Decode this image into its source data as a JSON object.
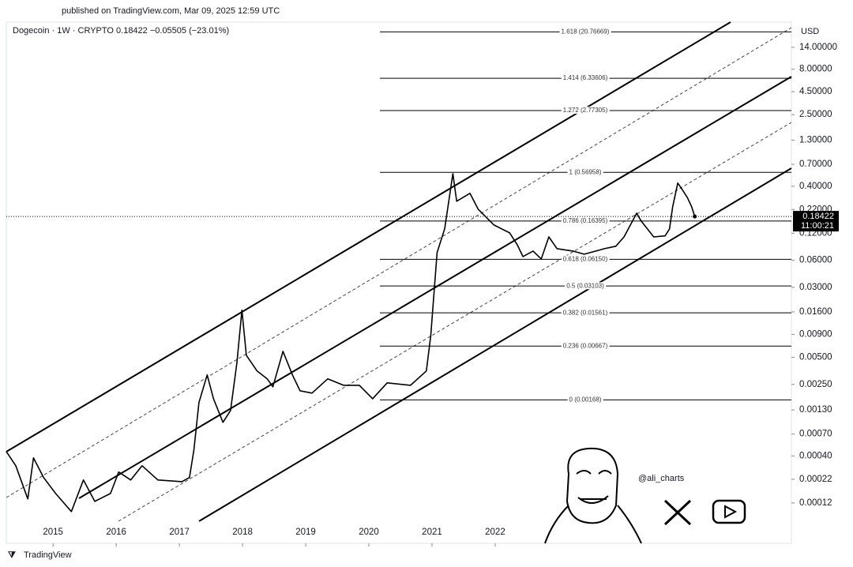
{
  "header": {
    "published": "published on TradingView.com, Mar 09, 2025 12:59 UTC"
  },
  "chart_data": {
    "type": "line",
    "title": "Dogecoin · 1W · CRYPTO  0.18422  −0.05505 (−23.01%)",
    "y_unit": "USD",
    "log_scale": true,
    "color": "#000000",
    "x": [
      2014.26,
      2014.41,
      2014.6,
      2014.69,
      2014.85,
      2015.04,
      2015.29,
      2015.48,
      2015.66,
      2015.91,
      2016.04,
      2016.23,
      2016.41,
      2016.66,
      2017.04,
      2017.16,
      2017.23,
      2017.31,
      2017.44,
      2017.54,
      2017.69,
      2017.81,
      2017.91,
      2017.99,
      2018.06,
      2018.23,
      2018.39,
      2018.48,
      2018.64,
      2018.79,
      2018.91,
      2019.1,
      2019.35,
      2019.6,
      2019.85,
      2020.06,
      2020.29,
      2020.66,
      2020.91,
      2020.98,
      2021.08,
      2021.2,
      2021.33,
      2021.39,
      2021.6,
      2021.73,
      2021.98,
      2022.23,
      2022.35,
      2022.44,
      2022.6,
      2022.73,
      2022.85,
      2022.98,
      2023.23,
      2023.41,
      2023.73,
      2023.91,
      2024.04,
      2024.24,
      2024.31,
      2024.51,
      2024.69,
      2024.76,
      2024.81,
      2024.89,
      2024.96,
      2025.04,
      2025.11,
      2025.16
    ],
    "values": [
      0.000448,
      0.000311,
      0.000133,
      0.000381,
      0.00023,
      0.000153,
      9.63e-05,
      0.000216,
      0.000125,
      0.000153,
      0.000265,
      0.000216,
      0.000311,
      0.000216,
      0.000207,
      0.00023,
      0.000466,
      0.00157,
      0.00318,
      0.00173,
      0.000946,
      0.00128,
      0.00431,
      0.0167,
      0.00527,
      0.00352,
      0.00288,
      0.00235,
      0.00583,
      0.00318,
      0.00212,
      0.002,
      0.00288,
      0.00244,
      0.00244,
      0.00173,
      0.0026,
      0.00244,
      0.00352,
      0.00873,
      0.073,
      0.134,
      0.551,
      0.272,
      0.333,
      0.222,
      0.148,
      0.121,
      0.0893,
      0.0659,
      0.076,
      0.0621,
      0.109,
      0.0807,
      0.076,
      0.0701,
      0.0807,
      0.0859,
      0.109,
      0.2,
      0.164,
      0.109,
      0.112,
      0.134,
      0.236,
      0.433,
      0.368,
      0.301,
      0.236,
      0.18422
    ],
    "xlim": [
      2014.26,
      2026.69
    ],
    "xticks": [
      2015,
      2016,
      2017,
      2018,
      2019,
      2020,
      2021,
      2022
    ],
    "ylim": [
      4.27e-05,
      26.7
    ],
    "yticks": [
      {
        "value": 14,
        "label": "14.00000"
      },
      {
        "value": 8,
        "label": "8.00000"
      },
      {
        "value": 4.5,
        "label": "4.50000"
      },
      {
        "value": 2.5,
        "label": "2.50000"
      },
      {
        "value": 1.3,
        "label": "1.30000"
      },
      {
        "value": 0.7,
        "label": "0.70000"
      },
      {
        "value": 0.4,
        "label": "0.40000"
      },
      {
        "value": 0.22,
        "label": "0.22000"
      },
      {
        "value": 0.12,
        "label": "0.12000"
      },
      {
        "value": 0.06,
        "label": "0.06000"
      },
      {
        "value": 0.03,
        "label": "0.03000"
      },
      {
        "value": 0.016,
        "label": "0.01600"
      },
      {
        "value": 0.009,
        "label": "0.00900"
      },
      {
        "value": 0.005,
        "label": "0.00500"
      },
      {
        "value": 0.0025,
        "label": "0.00250"
      },
      {
        "value": 0.0013,
        "label": "0.00130"
      },
      {
        "value": 0.0007,
        "label": "0.00070"
      },
      {
        "value": 0.0004,
        "label": "0.00040"
      },
      {
        "value": 0.00022,
        "label": "0.00022"
      },
      {
        "value": 0.00012,
        "label": "0.00012"
      }
    ],
    "fib_levels": [
      {
        "value": 20.76669,
        "label": "1.618 (20.76669)"
      },
      {
        "value": 6.33606,
        "label": "1.414 (6.33606)"
      },
      {
        "value": 2.77305,
        "label": "1.272 (2.77305)"
      },
      {
        "value": 0.56958,
        "label": "1 (0.56958)"
      },
      {
        "value": 0.16395,
        "label": "0.786 (0.16395)"
      },
      {
        "value": 0.0615,
        "label": "0.618 (0.06150)"
      },
      {
        "value": 0.03103,
        "label": "0.5 (0.03103)"
      },
      {
        "value": 0.01561,
        "label": "0.382 (0.01561)"
      },
      {
        "value": 0.00667,
        "label": "0.236 (0.00667)"
      },
      {
        "value": 0.00168,
        "label": "0 (0.00168)"
      }
    ],
    "last_price_label": "0.18422",
    "countdown": "11:00:21"
  },
  "watermark": {
    "handle": "@ali_charts"
  },
  "footer": {
    "brand": "TradingView"
  }
}
